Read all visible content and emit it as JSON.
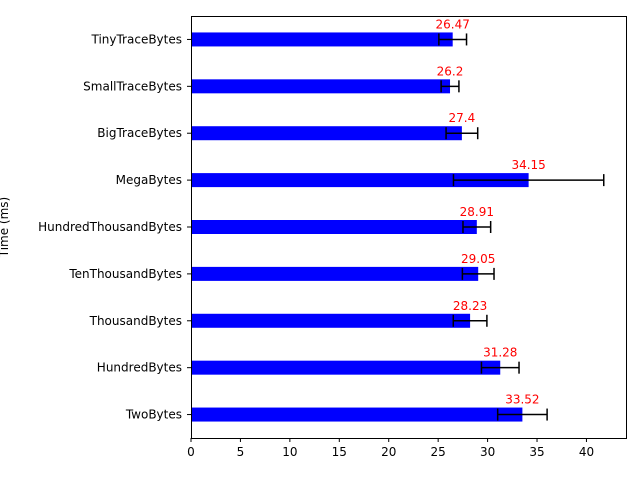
{
  "chart_data": {
    "type": "bar",
    "orientation": "horizontal",
    "categories": [
      "TinyTraceBytes",
      "SmallTraceBytes",
      "BigTraceBytes",
      "MegaBytes",
      "HundredThousandBytes",
      "TenThousandBytes",
      "ThousandBytes",
      "HundredBytes",
      "TwoBytes"
    ],
    "values": [
      26.47,
      26.2,
      27.4,
      34.15,
      28.91,
      29.05,
      28.23,
      31.28,
      33.52
    ],
    "errors": [
      1.4,
      0.9,
      1.6,
      7.6,
      1.4,
      1.6,
      1.7,
      1.9,
      2.5
    ],
    "data_labels": [
      "26.47",
      "26.2",
      "27.4",
      "34.15",
      "28.91",
      "29.05",
      "28.23",
      "31.28",
      "33.52"
    ],
    "title": "",
    "xlabel": "",
    "ylabel": "Time (ms)",
    "xlim": [
      0,
      44
    ],
    "xticks": [
      0,
      5,
      10,
      15,
      20,
      25,
      30,
      35,
      40
    ],
    "grid": false,
    "bar_color": "#0000ff",
    "error_color": "#000000",
    "label_color": "#ff0000"
  }
}
